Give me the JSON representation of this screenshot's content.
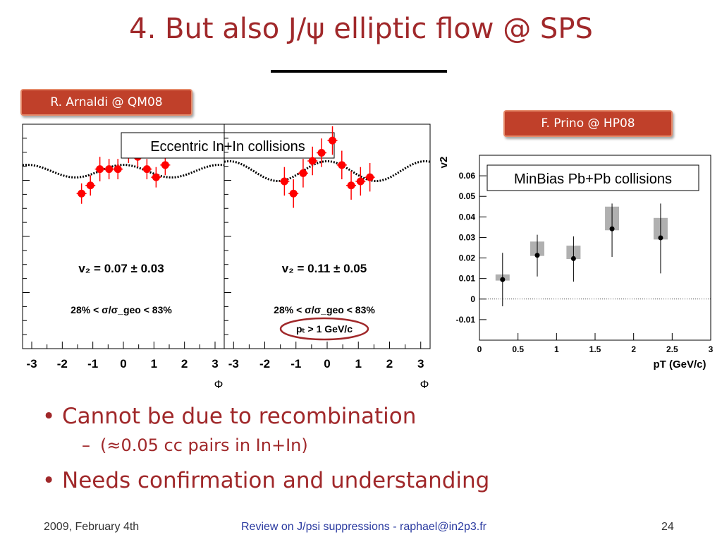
{
  "slide": {
    "title": "4. But also J/ψ elliptic flow @ SPS",
    "tag_left": "R. Arnaldi @ QM08",
    "tag_right": "F. Prino @ HP08",
    "bullets": [
      {
        "level": 1,
        "text": "Cannot be due to recombination"
      },
      {
        "level": 2,
        "text": "(≈0.05 cc pairs in In+In)"
      },
      {
        "level": 1,
        "text": "Needs confirmation and understanding"
      }
    ],
    "footer": {
      "date": "2009, February 4th",
      "center": "Review on J/psi suppressions - raphael@in2p3.fr",
      "page": "24"
    },
    "colors": {
      "title": "#a0282a",
      "tag_bg": "#c0402a",
      "marker": "#ff0000",
      "ellipse": "#a0282a",
      "box": "#b0b0b0"
    }
  },
  "chart_data": [
    {
      "type": "scatter",
      "annotation": "Eccentric In+In collisions",
      "panel_text": [
        "v₂ = 0.07 ± 0.03",
        "28% < σ/σ_geo < 83%"
      ],
      "xlabel": "Φ",
      "xlim": [
        -3.3,
        3.3
      ],
      "x_ticks": [
        "-3",
        "-2",
        "-1",
        "0",
        "1",
        "2",
        "3"
      ],
      "ylim": [
        -0.35,
        0.2
      ],
      "fit": {
        "offset": 0.07,
        "amplitude": 0.07
      },
      "points": [
        {
          "x": -1.37,
          "y": 0.03,
          "err": 0.025
        },
        {
          "x": -1.08,
          "y": 0.05,
          "err": 0.025
        },
        {
          "x": -0.77,
          "y": 0.09,
          "err": 0.03
        },
        {
          "x": -0.47,
          "y": 0.09,
          "err": 0.025
        },
        {
          "x": -0.18,
          "y": 0.09,
          "err": 0.025
        },
        {
          "x": 0.17,
          "y": 0.13,
          "err": 0.025
        },
        {
          "x": 0.47,
          "y": 0.12,
          "err": 0.025
        },
        {
          "x": 0.77,
          "y": 0.09,
          "err": 0.025
        },
        {
          "x": 1.07,
          "y": 0.07,
          "err": 0.025
        },
        {
          "x": 1.37,
          "y": 0.1,
          "err": 0.025
        }
      ]
    },
    {
      "type": "scatter",
      "panel_text": [
        "v₂ = 0.11 ± 0.05",
        "28% < σ/σ_geo < 83%",
        "pₜ > 1 GeV/c"
      ],
      "xlabel": "Φ",
      "xlim": [
        -3.3,
        3.3
      ],
      "x_ticks": [
        "-3",
        "-2",
        "-1",
        "0",
        "1",
        "2",
        "3"
      ],
      "ylim": [
        -0.35,
        0.2
      ],
      "fit": {
        "offset": 0.07,
        "amplitude": 0.11
      },
      "points": [
        {
          "x": -1.37,
          "y": 0.06,
          "err": 0.035
        },
        {
          "x": -1.08,
          "y": 0.03,
          "err": 0.035
        },
        {
          "x": -0.77,
          "y": 0.08,
          "err": 0.035
        },
        {
          "x": -0.47,
          "y": 0.11,
          "err": 0.035
        },
        {
          "x": -0.18,
          "y": 0.13,
          "err": 0.035
        },
        {
          "x": 0.17,
          "y": 0.16,
          "err": 0.035
        },
        {
          "x": 0.47,
          "y": 0.1,
          "err": 0.035
        },
        {
          "x": 0.77,
          "y": 0.05,
          "err": 0.035
        },
        {
          "x": 1.07,
          "y": 0.06,
          "err": 0.035
        },
        {
          "x": 1.37,
          "y": 0.07,
          "err": 0.035
        }
      ]
    },
    {
      "type": "scatter",
      "annotation": "MinBias Pb+Pb collisions",
      "xlabel": "pT (GeV/c)",
      "ylabel": "v2",
      "xlim": [
        0,
        3
      ],
      "ylim": [
        -0.02,
        0.07
      ],
      "x_ticks": [
        0,
        0.5,
        1,
        1.5,
        2,
        2.5,
        3
      ],
      "x_tick_labels": [
        "0",
        "0.5",
        "1",
        "1.5",
        "2",
        "2.5",
        "3"
      ],
      "y_ticks": [
        -0.01,
        0,
        0.01,
        0.02,
        0.03,
        0.04,
        0.05,
        0.06
      ],
      "y_tick_labels": [
        "-0.01",
        "0",
        "0.01",
        "0.02",
        "0.03",
        "0.04",
        "0.05",
        "0.06"
      ],
      "points": [
        {
          "x": 0.3,
          "y": 0.0095,
          "stat_lo": -0.0035,
          "stat_hi": 0.0225,
          "sys_lo": 0.009,
          "sys_hi": 0.012
        },
        {
          "x": 0.75,
          "y": 0.0213,
          "stat_lo": 0.011,
          "stat_hi": 0.0313,
          "sys_lo": 0.021,
          "sys_hi": 0.028
        },
        {
          "x": 1.22,
          "y": 0.0197,
          "stat_lo": 0.0085,
          "stat_hi": 0.0305,
          "sys_lo": 0.0195,
          "sys_hi": 0.026
        },
        {
          "x": 1.72,
          "y": 0.0342,
          "stat_lo": 0.0205,
          "stat_hi": 0.0465,
          "sys_lo": 0.0335,
          "sys_hi": 0.045
        },
        {
          "x": 2.35,
          "y": 0.0298,
          "stat_lo": 0.0125,
          "stat_hi": 0.0465,
          "sys_lo": 0.029,
          "sys_hi": 0.0395
        }
      ]
    }
  ]
}
